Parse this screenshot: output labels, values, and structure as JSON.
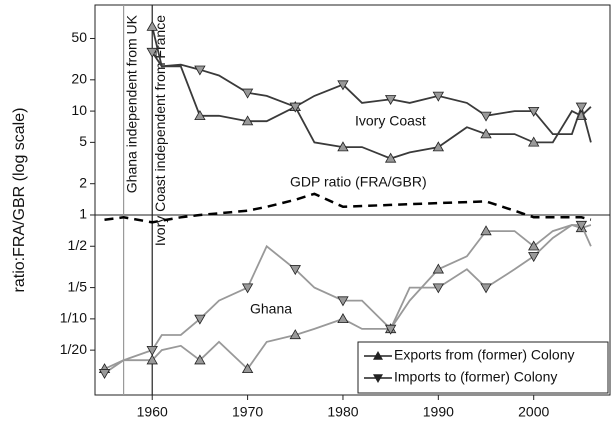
{
  "chart_data": {
    "type": "line",
    "y_label": "ratio:FRA/GBR (log scale)",
    "log_y": true,
    "xlim": [
      1954,
      2008
    ],
    "ylim": [
      0.0185,
      105
    ],
    "xticks": [
      1960,
      1970,
      1980,
      1990,
      2000
    ],
    "yticks": [
      {
        "value": 0.05,
        "label": "1/20"
      },
      {
        "value": 0.1,
        "label": "1/10"
      },
      {
        "value": 0.2,
        "label": "1/5"
      },
      {
        "value": 0.5,
        "label": "1/2"
      },
      1,
      2,
      5,
      10,
      20,
      50
    ],
    "hline": 1,
    "events": [
      {
        "x": 1957,
        "label": "Ghana independent from UK",
        "color": "#999999"
      },
      {
        "x": 1960,
        "label": "Ivory Coast independent from France",
        "color": "#222222"
      }
    ],
    "annotations": [
      "Ivory Coast",
      "Ghana",
      "GDP ratio (FRA/GBR)"
    ],
    "legend_corner": "lower right",
    "legend": [
      {
        "name": "Exports from (former) Colony",
        "marker": "triangle-up"
      },
      {
        "name": "Imports to (former) Colony",
        "marker": "triangle-down"
      }
    ],
    "series": [
      {
        "group": "Ivory Coast",
        "marker": "triangle-up",
        "color": "#3a3a3a",
        "dash": false,
        "x": [
          1960,
          1961,
          1963,
          1965,
          1967,
          1970,
          1972,
          1975,
          1977,
          1980,
          1982,
          1985,
          1987,
          1990,
          1993,
          1995,
          1998,
          2000,
          2002,
          2004,
          2005,
          2006
        ],
        "values": [
          65,
          27,
          27,
          9,
          9,
          8,
          8,
          11,
          5,
          4.5,
          4.5,
          3.5,
          4,
          4.5,
          7,
          6,
          6,
          5,
          5,
          10,
          9,
          11
        ]
      },
      {
        "group": "Ivory Coast",
        "marker": "triangle-down",
        "color": "#3a3a3a",
        "dash": false,
        "x": [
          1960,
          1961,
          1963,
          1965,
          1967,
          1970,
          1972,
          1975,
          1977,
          1980,
          1982,
          1985,
          1987,
          1990,
          1993,
          1995,
          1998,
          2000,
          2002,
          2004,
          2005,
          2006
        ],
        "values": [
          37,
          27,
          28,
          25,
          22,
          15,
          14,
          11,
          14,
          18,
          12,
          13,
          12,
          14,
          12,
          9,
          10,
          10,
          6,
          6,
          11,
          5
        ]
      },
      {
        "group": "Ghana",
        "marker": "triangle-up",
        "color": "#999999",
        "dash": false,
        "x": [
          1955,
          1957,
          1960,
          1961,
          1963,
          1965,
          1967,
          1970,
          1972,
          1975,
          1977,
          1980,
          1982,
          1985,
          1987,
          1990,
          1993,
          1995,
          1998,
          2000,
          2002,
          2004,
          2005,
          2006
        ],
        "values": [
          0.033,
          0.04,
          0.04,
          0.05,
          0.055,
          0.04,
          0.06,
          0.033,
          0.06,
          0.07,
          0.08,
          0.1,
          0.08,
          0.08,
          0.15,
          0.3,
          0.4,
          0.7,
          0.7,
          0.5,
          0.7,
          0.8,
          0.75,
          0.8
        ]
      },
      {
        "group": "Ghana",
        "marker": "triangle-down",
        "color": "#999999",
        "dash": false,
        "x": [
          1955,
          1957,
          1960,
          1961,
          1963,
          1965,
          1967,
          1970,
          1972,
          1975,
          1977,
          1980,
          1982,
          1985,
          1987,
          1990,
          1993,
          1995,
          1998,
          2000,
          2002,
          2004,
          2005,
          2006
        ],
        "values": [
          0.03,
          0.04,
          0.05,
          0.07,
          0.07,
          0.1,
          0.15,
          0.2,
          0.5,
          0.3,
          0.2,
          0.15,
          0.15,
          0.08,
          0.2,
          0.2,
          0.3,
          0.2,
          0.3,
          0.4,
          0.6,
          0.8,
          0.8,
          0.5
        ]
      },
      {
        "group": "GDP ratio (FRA/GBR)",
        "marker": "none",
        "color": "#000000",
        "dash": true,
        "x": [
          1955,
          1957,
          1960,
          1963,
          1965,
          1970,
          1972,
          1975,
          1977,
          1980,
          1985,
          1990,
          1995,
          1998,
          2000,
          2005,
          2006
        ],
        "values": [
          0.9,
          0.95,
          0.85,
          0.95,
          1.0,
          1.1,
          1.2,
          1.4,
          1.6,
          1.2,
          1.25,
          1.3,
          1.35,
          1.1,
          0.95,
          0.95,
          0.9
        ]
      }
    ]
  }
}
